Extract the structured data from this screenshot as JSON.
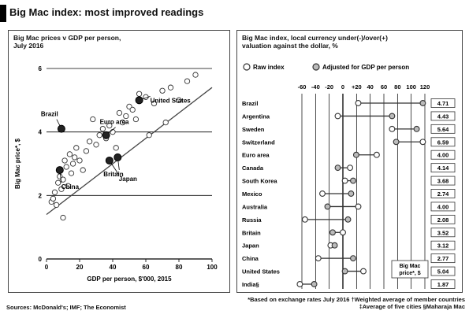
{
  "title": "Big Mac index: most improved readings",
  "source": "Sources: McDonald's; IMF; The Economist",
  "left_panel": {
    "title_line1": "Big Mac prices v GDP per person,",
    "title_line2": "July 2016"
  },
  "right_panel": {
    "title_line1": "Big Mac index, local currency under(-)/over(+)",
    "title_line2": "valuation against the dollar, %"
  },
  "notes": {
    "line1": "*Based on exchange rates July 2016   †Weighted average of member countries",
    "line2": "‡Average of five cities   §Maharaja Mac"
  },
  "callout": {
    "line1": "Big Mac",
    "line2": "price*, $"
  },
  "chart_data": [
    {
      "type": "scatter",
      "xlabel": "GDP per person, $'000, 2015",
      "ylabel": "Big Mac price*, $",
      "xlim": [
        0,
        100
      ],
      "ylim": [
        0,
        6
      ],
      "xticks": [
        "0",
        "20",
        "40",
        "60",
        "80",
        "100"
      ],
      "yticks": [
        "0",
        "2",
        "4",
        "6"
      ],
      "fit_line": {
        "x": [
          0,
          100
        ],
        "y": [
          1.4,
          5.4
        ]
      },
      "highlighted": [
        {
          "label": "Brazil",
          "x": 9,
          "y": 4.1
        },
        {
          "label": "Euro area",
          "x": 36,
          "y": 3.9
        },
        {
          "label": "United States",
          "x": 56,
          "y": 5.0
        },
        {
          "label": "Britain",
          "x": 43,
          "y": 3.2
        },
        {
          "label": "Japan",
          "x": 38,
          "y": 3.1
        },
        {
          "label": "China",
          "x": 8,
          "y": 2.8
        }
      ],
      "points": [
        [
          3,
          1.8
        ],
        [
          4,
          1.9
        ],
        [
          5,
          2.1
        ],
        [
          6,
          1.7
        ],
        [
          7,
          2.4
        ],
        [
          8,
          2.6
        ],
        [
          9,
          2.2
        ],
        [
          10,
          2.5
        ],
        [
          11,
          3.1
        ],
        [
          12,
          2.9
        ],
        [
          13,
          2.3
        ],
        [
          14,
          3.3
        ],
        [
          15,
          2.7
        ],
        [
          16,
          3.0
        ],
        [
          17,
          3.2
        ],
        [
          18,
          3.5
        ],
        [
          20,
          3.1
        ],
        [
          22,
          2.8
        ],
        [
          24,
          3.4
        ],
        [
          26,
          3.7
        ],
        [
          28,
          4.4
        ],
        [
          30,
          3.6
        ],
        [
          32,
          3.9
        ],
        [
          34,
          4.1
        ],
        [
          36,
          3.8
        ],
        [
          38,
          4.2
        ],
        [
          40,
          4.0
        ],
        [
          42,
          3.5
        ],
        [
          44,
          4.6
        ],
        [
          46,
          4.3
        ],
        [
          48,
          4.5
        ],
        [
          50,
          4.8
        ],
        [
          52,
          4.7
        ],
        [
          54,
          4.4
        ],
        [
          56,
          5.2
        ],
        [
          60,
          5.1
        ],
        [
          65,
          4.9
        ],
        [
          70,
          5.3
        ],
        [
          75,
          5.4
        ],
        [
          80,
          5.0
        ],
        [
          85,
          5.6
        ],
        [
          90,
          5.8
        ],
        [
          72,
          4.3
        ],
        [
          62,
          3.9
        ],
        [
          10,
          1.3
        ]
      ]
    },
    {
      "type": "dot-range",
      "xlim": [
        -60,
        60
      ],
      "xticks": [
        "-60",
        "-40",
        "-20",
        "0",
        "+20",
        "40",
        "60",
        "80",
        "100",
        "120"
      ],
      "legend": [
        "Raw index",
        "Adjusted for GDP per person"
      ],
      "categories": [
        "Brazil",
        "Argentina",
        "Sweden",
        "Switzerland",
        "Euro area",
        "Canada",
        "South Korea",
        "Mexico",
        "Australia",
        "Russia",
        "Britain",
        "Japan",
        "China",
        "United States",
        "India§"
      ],
      "series": [
        {
          "name": "Raw index",
          "values": [
            -5,
            -25,
            28,
            58,
            13,
            -13,
            -18,
            -40,
            -5,
            -57,
            -20,
            -32,
            -44,
            0,
            -62
          ]
        },
        {
          "name": "Adjusted for GDP per person",
          "values": [
            58,
            28,
            52,
            32,
            -7,
            -25,
            -10,
            -12,
            -35,
            -15,
            -30,
            -28,
            -10,
            -18,
            -48
          ]
        }
      ],
      "prices": [
        "4.71",
        "4.43",
        "5.64",
        "6.59",
        "4.00",
        "4.14",
        "3.68",
        "2.74",
        "4.00",
        "2.08",
        "3.52",
        "3.12",
        "2.77",
        "5.04",
        "1.87"
      ]
    }
  ]
}
